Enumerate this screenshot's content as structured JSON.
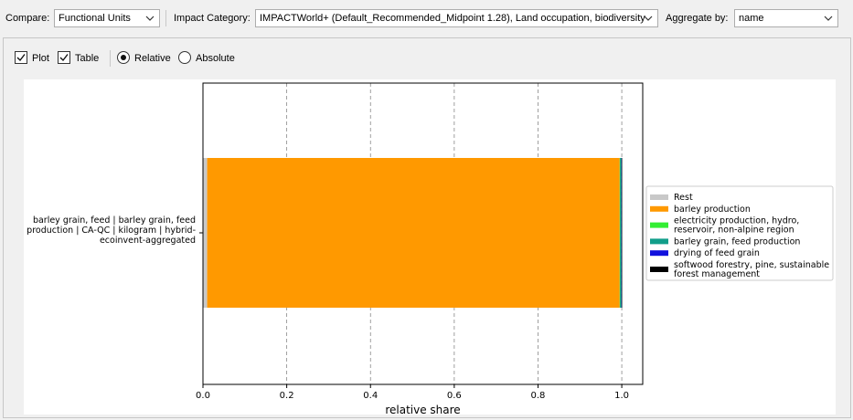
{
  "toolbar": {
    "compare_label": "Compare:",
    "compare_value": "Functional Units",
    "impact_label": "Impact Category:",
    "impact_value": "IMPACTWorld+ (Default_Recommended_Midpoint 1.28), Land occupation, biodiversity",
    "aggregate_label": "Aggregate by:",
    "aggregate_value": "name"
  },
  "options": {
    "plot_label": "Plot",
    "plot_checked": true,
    "table_label": "Table",
    "table_checked": true,
    "relative_label": "Relative",
    "absolute_label": "Absolute",
    "selected_mode": "Relative"
  },
  "chart_data": {
    "type": "bar",
    "orientation": "horizontal",
    "stacked": true,
    "categories": [
      "barley grain, feed | barley grain, feed production | CA-QC | kilogram | hybrid-ecoinvent-aggregated"
    ],
    "category_label_lines": [
      "barley grain, feed | barley grain, feed",
      "production | CA-QC | kilogram | hybrid-",
      "ecoinvent-aggregated"
    ],
    "series": [
      {
        "name": "Rest",
        "color": "#c8c8c8",
        "values": [
          0.01
        ]
      },
      {
        "name": "barley production",
        "color": "#ff9900",
        "values": [
          0.985
        ]
      },
      {
        "name": "electricity production, hydro, reservoir, non-alpine region",
        "color": "#33ee33",
        "values": [
          0.001
        ]
      },
      {
        "name": "barley grain, feed production",
        "color": "#119e8a",
        "values": [
          0.003
        ]
      },
      {
        "name": "drying of feed grain",
        "color": "#1111dd",
        "values": [
          0.0005
        ]
      },
      {
        "name": "softwood forestry, pine, sustainable forest management",
        "color": "#000000",
        "values": [
          0.0005
        ]
      }
    ],
    "legend_lines": [
      [
        "Rest"
      ],
      [
        "barley production"
      ],
      [
        "electricity production, hydro,",
        "reservoir, non-alpine region"
      ],
      [
        "barley grain, feed production"
      ],
      [
        "drying of feed grain"
      ],
      [
        "softwood forestry, pine, sustainable",
        "forest management"
      ]
    ],
    "xlabel": "relative share",
    "ylabel": "",
    "xlim": [
      0,
      1.05
    ],
    "xticks": [
      0.0,
      0.2,
      0.4,
      0.6,
      0.8,
      1.0
    ],
    "xtick_labels": [
      "0.0",
      "0.2",
      "0.4",
      "0.6",
      "0.8",
      "1.0"
    ],
    "grid_x": true,
    "grid_style": "dashed",
    "legend_position": "right"
  }
}
